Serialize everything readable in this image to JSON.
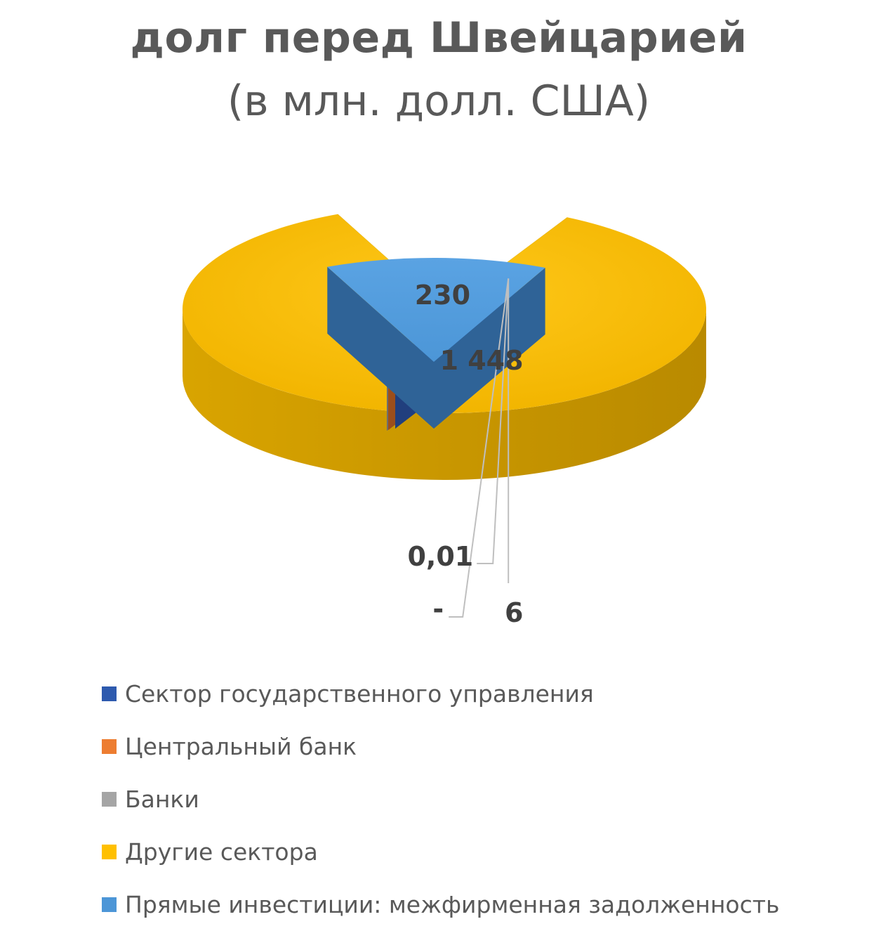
{
  "chart_data": {
    "type": "pie",
    "title": "долг перед Швейцарией",
    "subtitle": "(в млн. долл. США)",
    "categories": [
      "Сектор государственного управления",
      "Центральный банк",
      "Банки",
      "Другие сектора",
      "Прямые инвестиции: межфирменная задолженность"
    ],
    "values": [
      6,
      0,
      0.01,
      1448,
      230
    ],
    "data_labels": [
      "6",
      "-",
      "0,01",
      "1 448",
      "230"
    ],
    "colors": [
      "#2E5AAE",
      "#ED7D31",
      "#A5A5A5",
      "#FFC000",
      "#4C96D7"
    ],
    "style": "3d-exploded",
    "legend_position": "bottom"
  },
  "legend": {
    "items": [
      {
        "label": "Сектор государственного управления",
        "color": "#2E5AAE"
      },
      {
        "label": "Центральный банк",
        "color": "#ED7D31"
      },
      {
        "label": "Банки",
        "color": "#A5A5A5"
      },
      {
        "label": "Другие сектора",
        "color": "#FFC000"
      },
      {
        "label": "Прямые инвестиции: межфирменная задолженность",
        "color": "#4C96D7"
      }
    ]
  }
}
